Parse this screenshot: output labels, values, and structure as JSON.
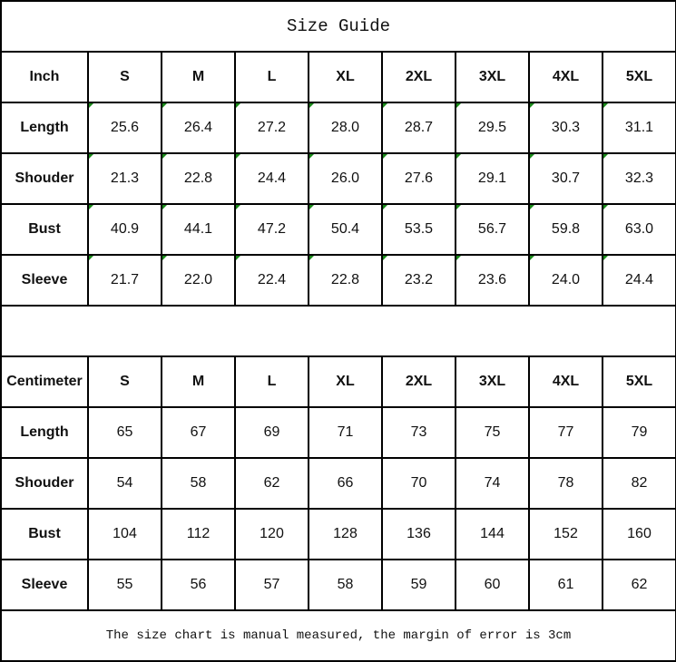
{
  "title": "Size Guide",
  "sizes": [
    "S",
    "M",
    "L",
    "XL",
    "2XL",
    "3XL",
    "4XL",
    "5XL"
  ],
  "inch": {
    "label": "Inch",
    "rows": [
      {
        "name": "Length",
        "values": [
          "25.6",
          "26.4",
          "27.2",
          "28.0",
          "28.7",
          "29.5",
          "30.3",
          "31.1"
        ]
      },
      {
        "name": "Shouder",
        "values": [
          "21.3",
          "22.8",
          "24.4",
          "26.0",
          "27.6",
          "29.1",
          "30.7",
          "32.3"
        ]
      },
      {
        "name": "Bust",
        "values": [
          "40.9",
          "44.1",
          "47.2",
          "50.4",
          "53.5",
          "56.7",
          "59.8",
          "63.0"
        ]
      },
      {
        "name": "Sleeve",
        "values": [
          "21.7",
          "22.0",
          "22.4",
          "22.8",
          "23.2",
          "23.6",
          "24.0",
          "24.4"
        ]
      }
    ]
  },
  "cm": {
    "label": "Centimeter",
    "rows": [
      {
        "name": "Length",
        "values": [
          "65",
          "67",
          "69",
          "71",
          "73",
          "75",
          "77",
          "79"
        ]
      },
      {
        "name": "Shouder",
        "values": [
          "54",
          "58",
          "62",
          "66",
          "70",
          "74",
          "78",
          "82"
        ]
      },
      {
        "name": "Bust",
        "values": [
          "104",
          "112",
          "120",
          "128",
          "136",
          "144",
          "152",
          "160"
        ]
      },
      {
        "name": "Sleeve",
        "values": [
          "55",
          "56",
          "57",
          "58",
          "59",
          "60",
          "61",
          "62"
        ]
      }
    ]
  },
  "footer": "The size chart is manual measured, the margin of error is 3cm",
  "colors": {
    "border": "#000000",
    "error_indicator": "#1a8a1a"
  }
}
